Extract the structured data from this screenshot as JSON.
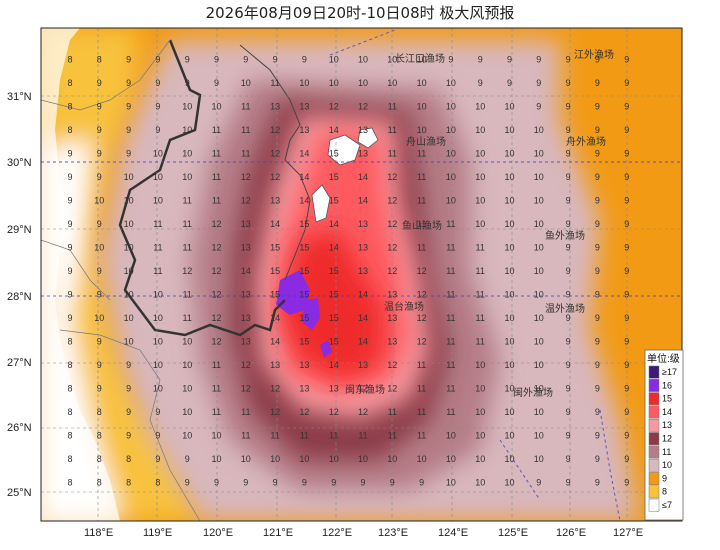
{
  "title": "2026年08月09日20时-10日08时 极大风预报",
  "lat_labels": [
    "31°N",
    "30°N",
    "29°N",
    "28°N",
    "27°N",
    "26°N",
    "25°N"
  ],
  "lon_labels": [
    "118°E",
    "119°E",
    "120°E",
    "121°E",
    "122°E",
    "123°E",
    "124°E",
    "125°E",
    "126°E",
    "127°E"
  ],
  "fishing_grounds": [
    "长江口渔场",
    "江外渔场",
    "舟山渔场",
    "舟外渔场",
    "鱼山渔场",
    "鱼外渔场",
    "温台渔场",
    "温外渔场",
    "闽东渔场",
    "闽外渔场"
  ],
  "legend": {
    "title": "单位:级",
    "levels": [
      "≥17",
      "16",
      "15",
      "14",
      "13",
      "12",
      "11",
      "10",
      "9",
      "8",
      "≤7"
    ],
    "colors": [
      "#3d1a78",
      "#8a2be2",
      "#ef2b2b",
      "#ff5a5f",
      "#f59aa0",
      "#8b3a46",
      "#b57d86",
      "#d8b7bd",
      "#f29a14",
      "#f8c23c",
      "#ffffff"
    ]
  },
  "colors": {
    "land": "#ffffff",
    "level7": "#ffffff",
    "level8": "#f8c23c",
    "level9": "#f29a14",
    "level10": "#d8b7bd",
    "level11": "#b57d86",
    "level12": "#8b3a46",
    "level13": "#f59aa0",
    "level14": "#ff5a5f",
    "level15": "#ef2b2b",
    "level16": "#8a2be2"
  },
  "grid_values": [
    [
      "8",
      "8",
      "9",
      "9",
      "9",
      "9",
      "9",
      "9",
      "9",
      "10",
      "10",
      "10",
      "10",
      "9",
      "9",
      "9",
      "9",
      "9",
      "9",
      "9"
    ],
    [
      "8",
      "9",
      "9",
      "9",
      "9",
      "9",
      "10",
      "11",
      "10",
      "10",
      "10",
      "10",
      "10",
      "10",
      "9",
      "9",
      "9",
      "9",
      "9",
      "9"
    ],
    [
      "8",
      "9",
      "9",
      "9",
      "10",
      "10",
      "11",
      "13",
      "13",
      "12",
      "12",
      "11",
      "10",
      "10",
      "10",
      "10",
      "9",
      "9",
      "9",
      "9"
    ],
    [
      "8",
      "9",
      "9",
      "9",
      "10",
      "11",
      "11",
      "12",
      "13",
      "14",
      "13",
      "11",
      "10",
      "10",
      "10",
      "10",
      "10",
      "9",
      "9",
      "9"
    ],
    [
      "9",
      "9",
      "9",
      "10",
      "10",
      "11",
      "11",
      "12",
      "14",
      "15",
      "13",
      "11",
      "11",
      "10",
      "10",
      "10",
      "10",
      "9",
      "9",
      "9"
    ],
    [
      "9",
      "9",
      "10",
      "10",
      "10",
      "11",
      "12",
      "12",
      "14",
      "15",
      "14",
      "12",
      "11",
      "10",
      "10",
      "10",
      "10",
      "9",
      "9",
      "9"
    ],
    [
      "9",
      "10",
      "10",
      "10",
      "11",
      "11",
      "12",
      "13",
      "14",
      "15",
      "14",
      "12",
      "11",
      "10",
      "10",
      "10",
      "10",
      "9",
      "9",
      "9"
    ],
    [
      "9",
      "9",
      "10",
      "11",
      "11",
      "12",
      "13",
      "14",
      "15",
      "14",
      "13",
      "12",
      "11",
      "11",
      "10",
      "10",
      "10",
      "9",
      "9",
      "9"
    ],
    [
      "9",
      "10",
      "10",
      "11",
      "11",
      "12",
      "13",
      "15",
      "15",
      "14",
      "13",
      "12",
      "11",
      "11",
      "11",
      "10",
      "10",
      "9",
      "9",
      "9"
    ],
    [
      "9",
      "9",
      "10",
      "11",
      "12",
      "12",
      "14",
      "15",
      "15",
      "15",
      "13",
      "12",
      "12",
      "11",
      "11",
      "10",
      "10",
      "9",
      "9",
      "9"
    ],
    [
      "9",
      "9",
      "10",
      "10",
      "11",
      "12",
      "13",
      "15",
      "15",
      "15",
      "14",
      "13",
      "12",
      "11",
      "11",
      "10",
      "10",
      "9",
      "9",
      "9"
    ],
    [
      "9",
      "10",
      "10",
      "10",
      "11",
      "12",
      "13",
      "14",
      "15",
      "15",
      "14",
      "13",
      "12",
      "11",
      "11",
      "10",
      "10",
      "9",
      "9",
      "9"
    ],
    [
      "8",
      "9",
      "10",
      "10",
      "10",
      "12",
      "13",
      "14",
      "15",
      "15",
      "14",
      "13",
      "12",
      "11",
      "11",
      "10",
      "10",
      "9",
      "9",
      "9"
    ],
    [
      "8",
      "9",
      "9",
      "10",
      "10",
      "11",
      "12",
      "13",
      "13",
      "14",
      "13",
      "12",
      "11",
      "11",
      "10",
      "10",
      "10",
      "9",
      "9",
      "9"
    ],
    [
      "8",
      "9",
      "9",
      "10",
      "10",
      "11",
      "12",
      "12",
      "13",
      "13",
      "12",
      "12",
      "11",
      "11",
      "10",
      "10",
      "10",
      "9",
      "9",
      "9"
    ],
    [
      "8",
      "8",
      "9",
      "9",
      "10",
      "11",
      "11",
      "12",
      "12",
      "12",
      "12",
      "11",
      "11",
      "11",
      "10",
      "10",
      "10",
      "9",
      "9",
      "9"
    ],
    [
      "8",
      "8",
      "9",
      "9",
      "10",
      "10",
      "11",
      "11",
      "11",
      "11",
      "11",
      "11",
      "11",
      "10",
      "10",
      "10",
      "10",
      "9",
      "9",
      "9"
    ],
    [
      "8",
      "8",
      "8",
      "9",
      "9",
      "10",
      "10",
      "10",
      "10",
      "10",
      "10",
      "10",
      "10",
      "10",
      "10",
      "10",
      "10",
      "9",
      "9",
      "9"
    ],
    [
      "8",
      "8",
      "8",
      "8",
      "9",
      "9",
      "9",
      "9",
      "9",
      "9",
      "9",
      "9",
      "9",
      "10",
      "10",
      "10",
      "9",
      "9",
      "9",
      "9"
    ]
  ]
}
